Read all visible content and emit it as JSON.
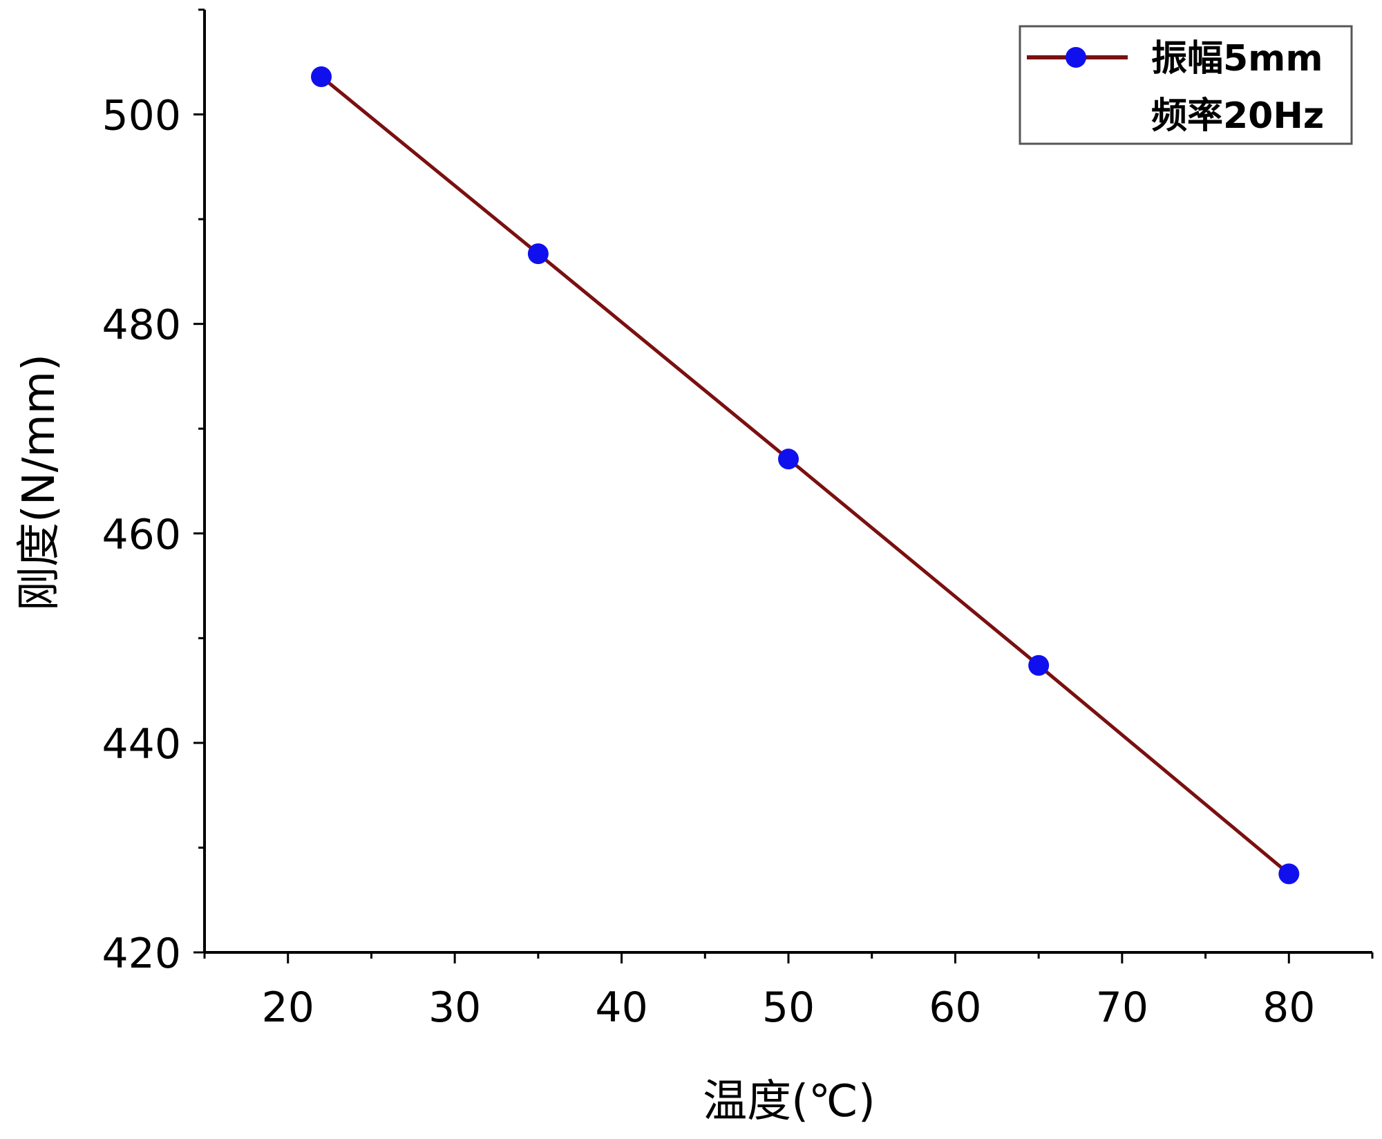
{
  "chart_data": {
    "type": "line",
    "xlabel": "温度(℃)",
    "ylabel": "刚度(N/mm)",
    "xlim": [
      15,
      85
    ],
    "ylim": [
      420,
      510
    ],
    "x_ticks": [
      20,
      30,
      40,
      50,
      60,
      70,
      80
    ],
    "y_ticks": [
      420,
      440,
      460,
      480,
      500
    ],
    "legend_position": "top-right",
    "series": [
      {
        "name": "振幅5mm 频率20Hz",
        "legend_lines": [
          "振幅5mm",
          "频率20Hz"
        ],
        "line_color": "#7a1010",
        "marker_color": "#1010ee",
        "x": [
          22,
          35,
          50,
          65,
          80
        ],
        "y": [
          503.6,
          486.7,
          467.1,
          447.4,
          427.5
        ]
      }
    ]
  }
}
